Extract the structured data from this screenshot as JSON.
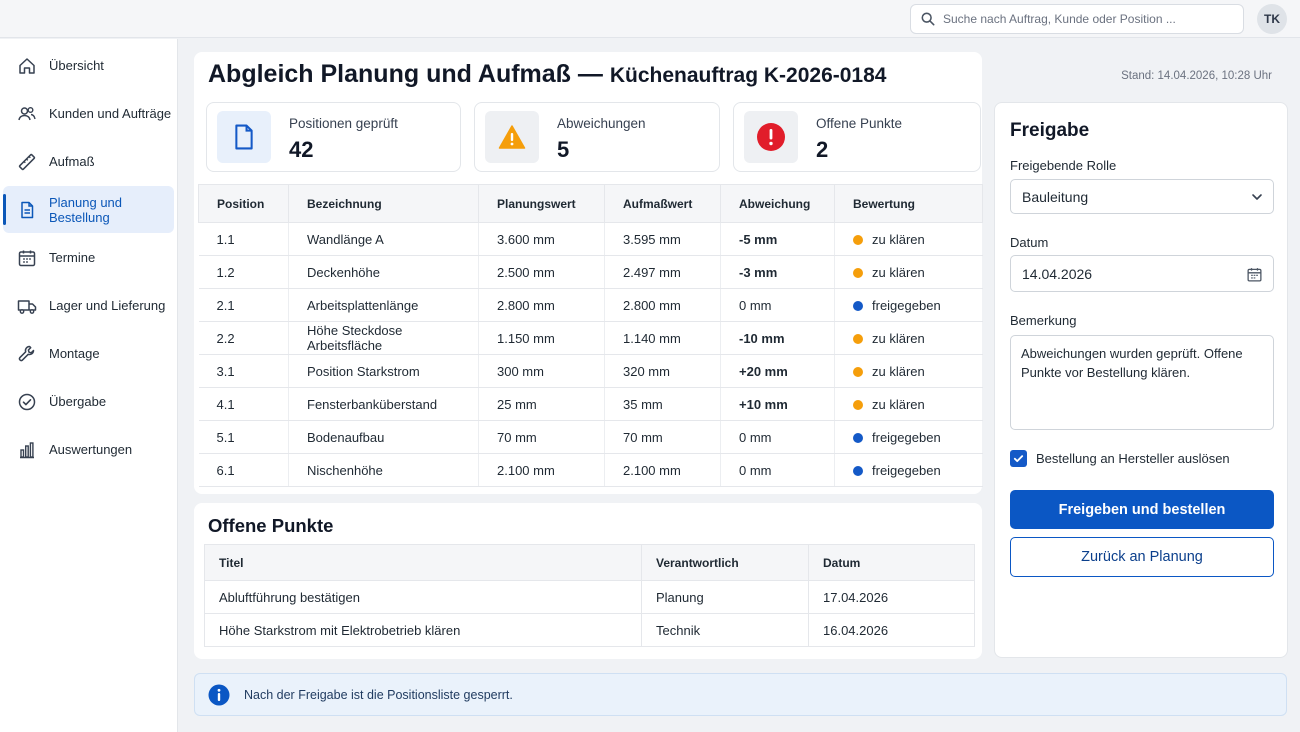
{
  "header": {
    "search_placeholder": "Suche nach Auftrag, Kunde oder Position ...",
    "avatar_initials": "TK"
  },
  "sidebar": {
    "active_index": 3,
    "items": [
      {
        "label": "Übersicht",
        "icon": "home-icon"
      },
      {
        "label": "Kunden und Aufträge",
        "icon": "users-icon"
      },
      {
        "label": "Aufmaß",
        "icon": "ruler-icon"
      },
      {
        "label": "Planung und Bestellung",
        "icon": "document-icon"
      },
      {
        "label": "Termine",
        "icon": "calendar-icon"
      },
      {
        "label": "Lager und Lieferung",
        "icon": "truck-icon"
      },
      {
        "label": "Montage",
        "icon": "wrench-icon"
      },
      {
        "label": "Übergabe",
        "icon": "check-circle-icon"
      },
      {
        "label": "Auswertungen",
        "icon": "bar-chart-icon"
      }
    ]
  },
  "page": {
    "title": "Abgleich Planung und Aufmaß",
    "dash": "—",
    "subtitle": "Küchenauftrag K-2026-0184",
    "stand": "Stand: 14.04.2026, 10:28 Uhr"
  },
  "kpis": [
    {
      "label": "Positionen geprüft",
      "value": "42",
      "icon": "document-icon"
    },
    {
      "label": "Abweichungen",
      "value": "5",
      "icon": "warning-icon"
    },
    {
      "label": "Offene Punkte",
      "value": "2",
      "icon": "error-icon"
    }
  ],
  "positions": {
    "headers": [
      "Position",
      "Bezeichnung",
      "Planungswert",
      "Aufmaßwert",
      "Abweichung",
      "Bewertung"
    ],
    "rows": [
      {
        "pos": "1.1",
        "name": "Wandlänge A",
        "plan": "3.600 mm",
        "aufmass": "3.595 mm",
        "dev": "-5 mm",
        "status": "zu klären",
        "state": "warn"
      },
      {
        "pos": "1.2",
        "name": "Deckenhöhe",
        "plan": "2.500 mm",
        "aufmass": "2.497 mm",
        "dev": "-3 mm",
        "status": "zu klären",
        "state": "warn"
      },
      {
        "pos": "2.1",
        "name": "Arbeitsplattenlänge",
        "plan": "2.800 mm",
        "aufmass": "2.800 mm",
        "dev": "0 mm",
        "status": "freigegeben",
        "state": "ok"
      },
      {
        "pos": "2.2",
        "name": "Höhe Steckdose Arbeitsfläche",
        "plan": "1.150 mm",
        "aufmass": "1.140 mm",
        "dev": "-10 mm",
        "status": "zu klären",
        "state": "warn"
      },
      {
        "pos": "3.1",
        "name": "Position Starkstrom",
        "plan": "300 mm",
        "aufmass": "320 mm",
        "dev": "+20 mm",
        "status": "zu klären",
        "state": "warn"
      },
      {
        "pos": "4.1",
        "name": "Fensterbanküberstand",
        "plan": "25 mm",
        "aufmass": "35 mm",
        "dev": "+10 mm",
        "status": "zu klären",
        "state": "warn"
      },
      {
        "pos": "5.1",
        "name": "Bodenaufbau",
        "plan": "70 mm",
        "aufmass": "70 mm",
        "dev": "0 mm",
        "status": "freigegeben",
        "state": "ok"
      },
      {
        "pos": "6.1",
        "name": "Nischenhöhe",
        "plan": "2.100 mm",
        "aufmass": "2.100 mm",
        "dev": "0 mm",
        "status": "freigegeben",
        "state": "ok"
      }
    ]
  },
  "open_points": {
    "title": "Offene Punkte",
    "headers": [
      "Titel",
      "Verantwortlich",
      "Datum"
    ],
    "rows": [
      {
        "title": "Abluftführung bestätigen",
        "owner": "Planung",
        "date": "17.04.2026"
      },
      {
        "title": "Höhe Starkstrom mit Elektrobetrieb klären",
        "owner": "Technik",
        "date": "16.04.2026"
      }
    ]
  },
  "release": {
    "title": "Freigabe",
    "role_label": "Freigebende Rolle",
    "role_value": "Bauleitung",
    "date_label": "Datum",
    "date_value": "14.04.2026",
    "remark_label": "Bemerkung",
    "remark_value": "Abweichungen wurden geprüft. Offene Punkte vor Bestellung klären.",
    "checkbox_label": "Bestellung an Hersteller auslösen",
    "checkbox_checked": true,
    "primary_button": "Freigeben und bestellen",
    "secondary_button": "Zurück an Planung"
  },
  "info": {
    "text": "Nach der Freigabe ist die Positionsliste gesperrt."
  },
  "colors": {
    "primary": "#0b57c4",
    "warning": "#f08c00",
    "warning_dot": "#f59e0b",
    "ok_dot": "#1459c7",
    "error": "#e11d2a"
  }
}
